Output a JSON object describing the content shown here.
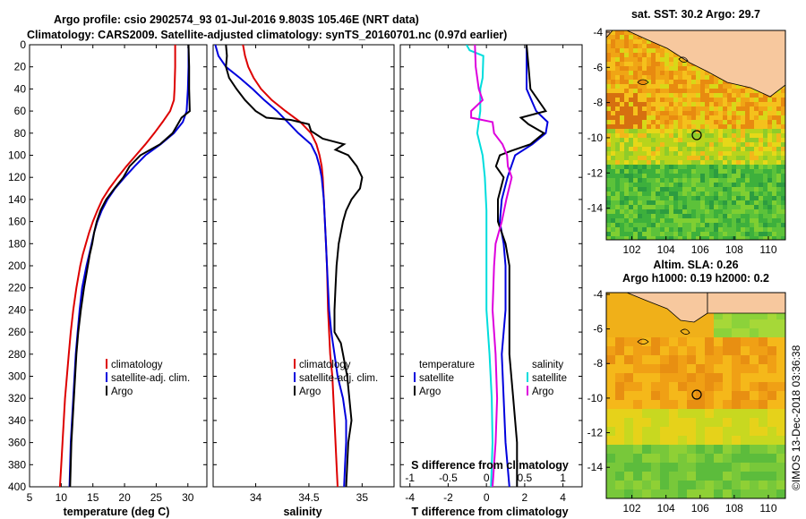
{
  "titles": {
    "line1": "Argo profile: csio 2902574_93 01-Jul-2016 9.803S 105.46E (NRT data)",
    "line2": "Climatology: CARS2009. Satellite-adjusted climatology: synTS_20160701.nc (0.97d earlier)"
  },
  "depth_ticks": [
    "0",
    "20",
    "40",
    "60",
    "80",
    "100",
    "120",
    "140",
    "160",
    "180",
    "200",
    "220",
    "240",
    "260",
    "280",
    "300",
    "320",
    "340",
    "360",
    "380",
    "400"
  ],
  "colors": {
    "climatology": "#dd0000",
    "satellite": "#0000dd",
    "argo": "#000000",
    "sat_salinity": "#00dddd",
    "argo_salinity": "#dd00dd"
  },
  "chart_data": [
    {
      "type": "line",
      "panel": "temperature",
      "xlabel": "temperature (deg C)",
      "ylabel": "",
      "xlim": [
        5,
        33
      ],
      "ylim": [
        400,
        0
      ],
      "x_ticks": [
        "5",
        "10",
        "15",
        "20",
        "25",
        "30"
      ],
      "legend": [
        "climatology",
        "satellite-adj. clim.",
        "Argo"
      ],
      "series": [
        {
          "name": "climatology",
          "depth": [
            0,
            20,
            40,
            50,
            60,
            70,
            80,
            90,
            100,
            110,
            120,
            130,
            140,
            150,
            160,
            170,
            180,
            190,
            200,
            220,
            240,
            260,
            280,
            300,
            320,
            340,
            360,
            380,
            400
          ],
          "values": [
            28.0,
            28.0,
            27.9,
            27.8,
            27.2,
            26.0,
            24.7,
            23.3,
            21.8,
            20.3,
            18.9,
            17.6,
            16.5,
            15.7,
            15.0,
            14.4,
            13.9,
            13.4,
            13.0,
            12.4,
            11.9,
            11.5,
            11.2,
            10.9,
            10.6,
            10.4,
            10.2,
            10.0,
            9.8
          ]
        },
        {
          "name": "satellite-adj. clim.",
          "depth": [
            0,
            20,
            40,
            60,
            70,
            80,
            90,
            100,
            110,
            120,
            130,
            140,
            150,
            160,
            170,
            180,
            190,
            200,
            220,
            240,
            260,
            280,
            300,
            320,
            340,
            360,
            380,
            400
          ],
          "values": [
            30.1,
            30.1,
            30.0,
            29.8,
            29.2,
            27.8,
            25.7,
            23.3,
            21.6,
            20.0,
            18.5,
            17.3,
            16.4,
            15.7,
            15.2,
            14.8,
            14.4,
            14.0,
            13.3,
            12.9,
            12.6,
            12.3,
            12.1,
            11.9,
            11.7,
            11.5,
            11.4,
            11.3
          ]
        },
        {
          "name": "Argo",
          "depth": [
            0,
            20,
            40,
            60,
            66,
            72,
            80,
            90,
            100,
            110,
            120,
            130,
            140,
            150,
            160,
            170,
            180,
            190,
            200,
            220,
            240,
            260,
            280,
            300,
            320,
            340,
            360,
            380,
            400
          ],
          "values": [
            30.1,
            30.2,
            30.2,
            30.3,
            29.0,
            28.4,
            27.6,
            25.6,
            22.5,
            20.8,
            19.8,
            18.4,
            17.1,
            16.2,
            15.6,
            15.2,
            14.9,
            14.5,
            14.2,
            13.6,
            13.1,
            12.7,
            12.4,
            12.2,
            12.0,
            11.8,
            11.6,
            11.5,
            11.4
          ]
        }
      ]
    },
    {
      "type": "line",
      "panel": "salinity",
      "xlabel": "salinity",
      "xlim": [
        33.6,
        35.3
      ],
      "ylim": [
        400,
        0
      ],
      "x_ticks": [
        "34",
        "34.5",
        "35"
      ],
      "legend": [
        "climatology",
        "satellite-adj. clim.",
        "Argo"
      ],
      "series": [
        {
          "name": "climatology",
          "depth": [
            0,
            10,
            20,
            30,
            40,
            50,
            60,
            70,
            80,
            90,
            100,
            110,
            120,
            140,
            160,
            180,
            200,
            240,
            260,
            280,
            300,
            340,
            380,
            400
          ],
          "values": [
            33.88,
            33.9,
            33.93,
            33.98,
            34.05,
            34.15,
            34.28,
            34.42,
            34.52,
            34.57,
            34.6,
            34.62,
            34.63,
            34.64,
            34.65,
            34.66,
            34.67,
            34.68,
            34.69,
            34.7,
            34.72,
            34.74,
            34.76,
            34.77
          ]
        },
        {
          "name": "satellite-adj. clim.",
          "depth": [
            0,
            10,
            20,
            30,
            40,
            50,
            60,
            70,
            80,
            90,
            100,
            110,
            120,
            140,
            160,
            180,
            200,
            220,
            240,
            260,
            280,
            300,
            320,
            340,
            360,
            380,
            400
          ],
          "values": [
            33.62,
            33.65,
            33.72,
            33.85,
            33.97,
            34.08,
            34.2,
            34.3,
            34.4,
            34.52,
            34.57,
            34.6,
            34.62,
            34.64,
            34.65,
            34.66,
            34.67,
            34.68,
            34.69,
            34.71,
            34.74,
            34.77,
            34.82,
            34.85,
            34.85,
            34.84,
            34.83
          ]
        },
        {
          "name": "Argo",
          "depth": [
            0,
            10,
            20,
            30,
            40,
            50,
            60,
            66,
            68,
            72,
            78,
            85,
            90,
            95,
            100,
            110,
            120,
            130,
            140,
            150,
            160,
            180,
            200,
            220,
            240,
            260,
            270,
            280,
            290,
            300,
            320,
            340,
            360,
            380,
            400
          ],
          "values": [
            33.72,
            33.73,
            33.72,
            33.75,
            33.82,
            33.9,
            34.0,
            34.1,
            34.33,
            34.5,
            34.52,
            34.63,
            34.83,
            34.75,
            34.87,
            34.95,
            35.0,
            34.98,
            34.9,
            34.85,
            34.82,
            34.78,
            34.76,
            34.75,
            34.74,
            34.74,
            34.8,
            34.82,
            34.84,
            34.86,
            34.88,
            34.9,
            34.87,
            34.86,
            34.85
          ]
        }
      ]
    },
    {
      "type": "line",
      "panel": "differences",
      "xlabel": "T difference from climatology",
      "xlabel_top": "S difference from climatology",
      "xlim": [
        -4.5,
        5
      ],
      "ylim": [
        400,
        0
      ],
      "x_ticks": [
        "-4",
        "-2",
        "0",
        "2",
        "4"
      ],
      "s_ticks": [
        "-1",
        "-0.5",
        "0",
        "0.5",
        "1"
      ],
      "legend_temperature": [
        "temperature",
        "satellite",
        "Argo"
      ],
      "legend_salinity": [
        "salinity",
        "satellite",
        "Argo"
      ],
      "series": [
        {
          "name": "T satellite",
          "depth": [
            0,
            20,
            40,
            60,
            70,
            80,
            90,
            100,
            110,
            120,
            140,
            160,
            180,
            200,
            240,
            280,
            320,
            360,
            400
          ],
          "values": [
            2.1,
            2.1,
            2.1,
            2.6,
            3.2,
            3.1,
            2.4,
            1.5,
            1.3,
            1.1,
            0.8,
            0.7,
            0.9,
            1.0,
            1.0,
            0.8,
            0.9,
            1.0,
            1.2
          ]
        },
        {
          "name": "T Argo",
          "depth": [
            0,
            20,
            40,
            60,
            66,
            72,
            80,
            90,
            96,
            100,
            110,
            120,
            140,
            160,
            180,
            200,
            240,
            280,
            320,
            360,
            400
          ],
          "values": [
            2.1,
            2.2,
            2.3,
            3.1,
            1.8,
            2.2,
            3.0,
            2.3,
            1.3,
            0.7,
            0.5,
            0.9,
            0.6,
            0.6,
            1.0,
            1.2,
            1.2,
            1.2,
            1.4,
            1.6,
            1.6
          ]
        },
        {
          "name": "S satellite",
          "depth": [
            0,
            5,
            10,
            30,
            40,
            60,
            70,
            80,
            100,
            120,
            150,
            180,
            200,
            240,
            280,
            320,
            360,
            400
          ],
          "values": [
            -0.26,
            -0.22,
            -0.04,
            -0.05,
            -0.08,
            -0.08,
            -0.1,
            -0.12,
            -0.05,
            -0.02,
            0.0,
            0.0,
            0.0,
            0.0,
            0.04,
            0.07,
            0.08,
            0.06
          ]
        },
        {
          "name": "S Argo",
          "depth": [
            0,
            20,
            40,
            50,
            60,
            66,
            70,
            80,
            90,
            100,
            110,
            120,
            140,
            160,
            180,
            200,
            240,
            280,
            320,
            360,
            400
          ],
          "values": [
            -0.15,
            -0.14,
            -0.1,
            -0.05,
            -0.2,
            -0.2,
            0.08,
            0.1,
            0.21,
            0.27,
            0.28,
            0.33,
            0.26,
            0.2,
            0.12,
            0.1,
            0.08,
            0.12,
            0.14,
            0.12,
            0.08
          ]
        }
      ]
    },
    {
      "type": "heatmap",
      "panel": "sst_map",
      "title": "sat. SST: 30.2 Argo: 29.7",
      "x_ticks": [
        "102",
        "104",
        "106",
        "108",
        "110"
      ],
      "y_ticks": [
        "-4",
        "-6",
        "-8",
        "-10",
        "-12",
        "-14"
      ],
      "xlim": [
        100.5,
        111
      ],
      "ylim": [
        -15.8,
        -3.9
      ],
      "profile_marker": [
        105.46,
        -9.803
      ]
    },
    {
      "type": "heatmap",
      "panel": "sla_map",
      "title_line1": "Altim. SLA: 0.26",
      "title_line2": "Argo h1000: 0.19 h2000: 0.2",
      "x_ticks": [
        "102",
        "104",
        "106",
        "108",
        "110"
      ],
      "y_ticks": [
        "-4",
        "-6",
        "-8",
        "-10",
        "-12",
        "-14"
      ],
      "xlim": [
        100.5,
        111
      ],
      "ylim": [
        -15.8,
        -3.9
      ],
      "profile_marker": [
        105.46,
        -9.803
      ]
    }
  ],
  "credit": "©IMOS 13-Dec-2018 03:36:38"
}
